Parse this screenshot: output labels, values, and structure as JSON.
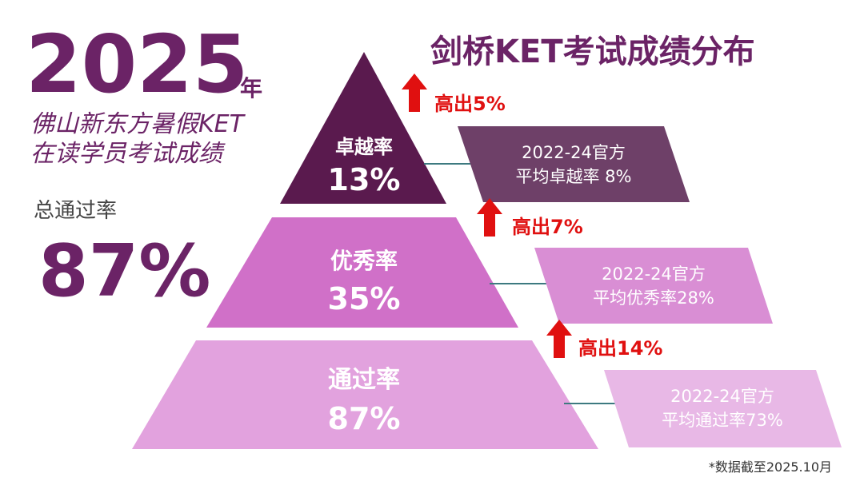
{
  "header": {
    "year": "2025",
    "year_suffix": "年",
    "subtitle": [
      "佛山新东方暑假KET",
      "在读学员考试成绩"
    ],
    "pass_label": "总通过率",
    "pass_value": "87%",
    "title": "剑桥KET考试成绩分布"
  },
  "tiers": [
    {
      "label": "卓越率",
      "value": "13%",
      "official": [
        "2022-24官方",
        "平均卓越率 8%"
      ],
      "diff": "高出5%"
    },
    {
      "label": "优秀率",
      "value": "35%",
      "official": [
        "2022-24官方",
        "平均优秀率28%"
      ],
      "diff": "高出7%"
    },
    {
      "label": "通过率",
      "value": "87%",
      "official": [
        "2022-24官方",
        "平均通过率73%"
      ],
      "diff": "高出14%"
    }
  ],
  "note": "*数据截至2025.10月"
}
